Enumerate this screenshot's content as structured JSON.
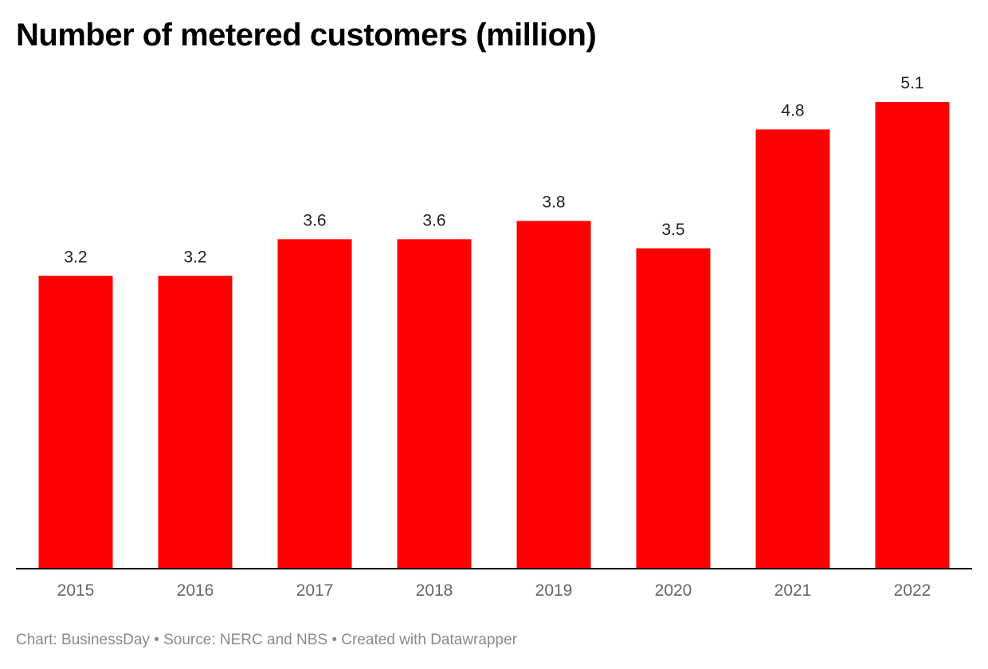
{
  "chart_data": {
    "type": "bar",
    "title": "Number of metered customers (million)",
    "categories": [
      "2015",
      "2016",
      "2017",
      "2018",
      "2019",
      "2020",
      "2021",
      "2022"
    ],
    "values": [
      3.2,
      3.2,
      3.6,
      3.6,
      3.8,
      3.5,
      4.8,
      5.1
    ],
    "data_labels": [
      "3.2",
      "3.2",
      "3.6",
      "3.6",
      "3.8",
      "3.5",
      "4.8",
      "5.1"
    ],
    "xlabel": "",
    "ylabel": "",
    "ylim": [
      0,
      5.1
    ],
    "grid": false,
    "bar_color": "#ff0000",
    "axis_color": "#000000"
  },
  "footer": {
    "chart_credit": "Chart: BusinessDay",
    "separator": "•",
    "source": "Source: NERC and NBS",
    "created_with": "Created with Datawrapper"
  }
}
